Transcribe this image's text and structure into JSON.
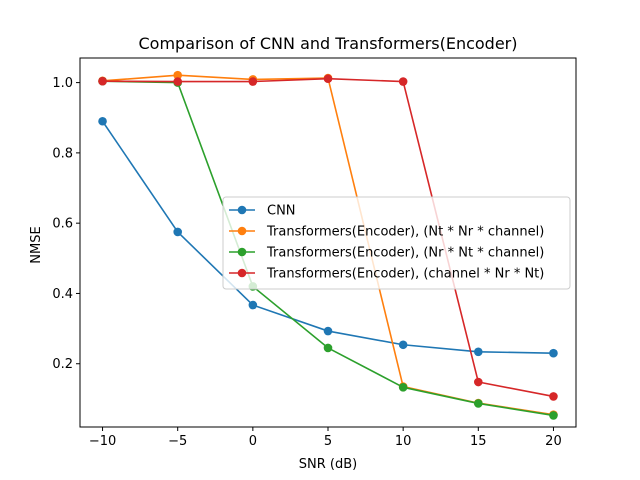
{
  "chart_data": {
    "type": "line",
    "title": "Comparison of CNN and Transformers(Encoder)",
    "xlabel": "SNR (dB)",
    "ylabel": "NMSE",
    "x": [
      -10,
      -5,
      0,
      5,
      10,
      15,
      20
    ],
    "x_ticks": [
      "−10",
      "−5",
      "0",
      "5",
      "10",
      "15",
      "20"
    ],
    "y_ticks": [
      "0.2",
      "0.4",
      "0.6",
      "0.8",
      "1.0"
    ],
    "y_tick_values": [
      0.2,
      0.4,
      0.6,
      0.8,
      1.0
    ],
    "xlim": [
      -11.5,
      21.5
    ],
    "ylim": [
      0.02,
      1.07
    ],
    "grid": false,
    "legend_position": "center-right",
    "series": [
      {
        "name": "CNN",
        "color": "#1f77b4",
        "values": [
          0.89,
          0.575,
          0.367,
          0.293,
          0.254,
          0.234,
          0.23
        ]
      },
      {
        "name": "Transformers(Encoder), (Nt * Nr * channel)",
        "color": "#ff7f0e",
        "values": [
          1.005,
          1.021,
          1.009,
          1.013,
          0.135,
          0.088,
          0.055
        ]
      },
      {
        "name": "Transformers(Encoder), (Nr * Nt * channel)",
        "color": "#2ca02c",
        "values": [
          1.004,
          1.0,
          0.42,
          0.245,
          0.133,
          0.087,
          0.053
        ]
      },
      {
        "name": "Transformers(Encoder), (channel * Nr * Nt)",
        "color": "#d62728",
        "values": [
          1.004,
          1.003,
          1.003,
          1.011,
          1.003,
          0.148,
          0.107
        ]
      }
    ]
  }
}
